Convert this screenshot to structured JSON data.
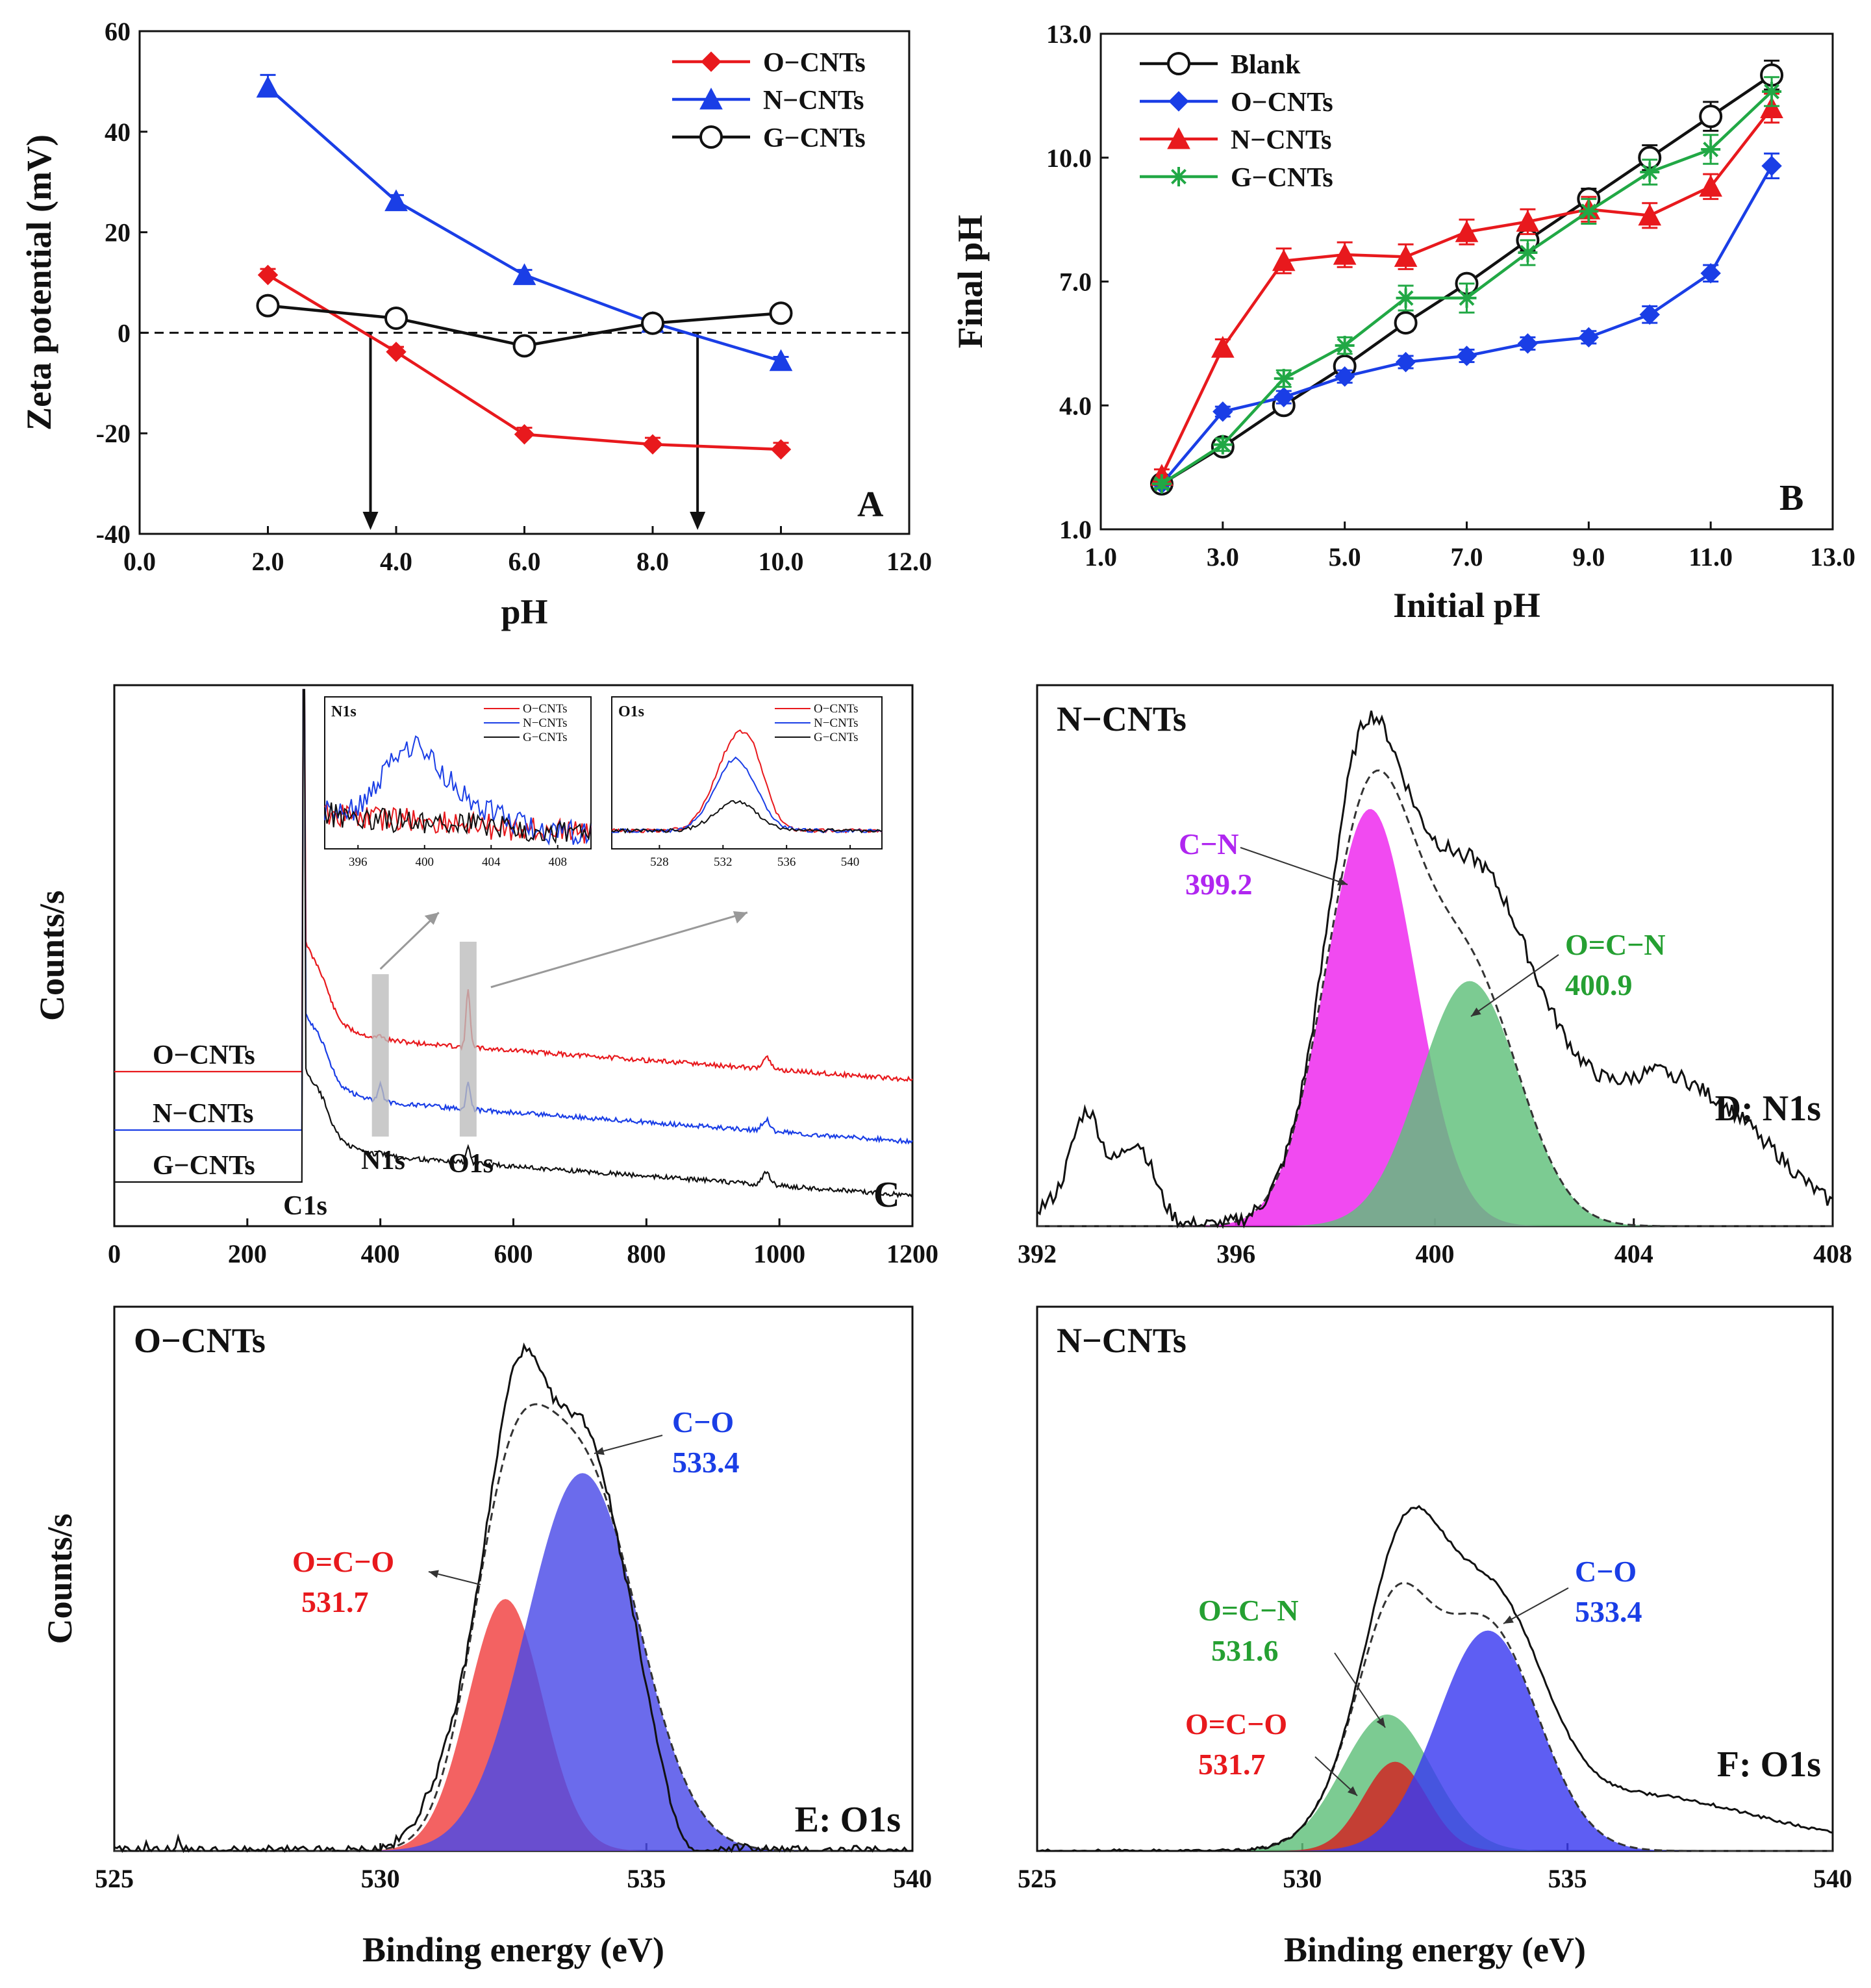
{
  "chart_data": [
    {
      "panel": "A",
      "type": "line",
      "xlabel": "pH",
      "ylabel": "Zeta potential (mV)",
      "xlim": [
        0.0,
        12.0
      ],
      "ylim": [
        -40,
        60
      ],
      "xticks": [
        "0.0",
        "2.0",
        "4.0",
        "6.0",
        "8.0",
        "10.0",
        "12.0"
      ],
      "yticks": [
        "60",
        "40",
        "20",
        "0",
        "-20",
        "-40"
      ],
      "letter": "A",
      "legend_position": "top-right",
      "reference_line_y": 0,
      "arrows_at_x": [
        3.6,
        8.7
      ],
      "series": [
        {
          "name": "O−CNTs",
          "color": "#e8191d",
          "marker": "diamond",
          "x": [
            2,
            4,
            6,
            8,
            10
          ],
          "y": [
            11.5,
            -3.8,
            -20.2,
            -22.2,
            -23.2
          ],
          "err": [
            1.2,
            1.0,
            1.3,
            1.3,
            1.3
          ]
        },
        {
          "name": "N−CNTs",
          "color": "#1a3ee6",
          "marker": "triangle",
          "x": [
            2,
            4,
            6,
            8,
            10
          ],
          "y": [
            48.8,
            26.2,
            11.5,
            2.0,
            -5.6
          ],
          "err": [
            2.5,
            1.2,
            1.0,
            0.8,
            0.8
          ]
        },
        {
          "name": "G−CNTs",
          "color": "#111111",
          "marker": "circle-open",
          "x": [
            2,
            4,
            6,
            8,
            10
          ],
          "y": [
            5.4,
            2.9,
            -2.6,
            1.9,
            3.9
          ],
          "err": [
            0.5,
            0.5,
            0.5,
            0.5,
            0.5
          ]
        }
      ]
    },
    {
      "panel": "B",
      "type": "line",
      "xlabel": "Initial pH",
      "ylabel": "Final pH",
      "xlim": [
        1.0,
        13.0
      ],
      "ylim": [
        1.0,
        13.0
      ],
      "xticks": [
        "1.0",
        "3.0",
        "5.0",
        "7.0",
        "9.0",
        "11.0",
        "13.0"
      ],
      "yticks": [
        "13.0",
        "10.0",
        "7.0",
        "4.0",
        "1.0"
      ],
      "letter": "B",
      "legend_position": "top-left",
      "series": [
        {
          "name": "Blank",
          "color": "#111111",
          "marker": "circle-open",
          "x": [
            2,
            3,
            4,
            5,
            6,
            7,
            8,
            9,
            10,
            11,
            12
          ],
          "y": [
            2.1,
            3.0,
            4.0,
            4.95,
            6.0,
            6.95,
            8.0,
            9.0,
            10.0,
            11.0,
            12.0
          ],
          "err": [
            0.15,
            0.15,
            0.2,
            0.2,
            0.2,
            0.2,
            0.25,
            0.25,
            0.3,
            0.35,
            0.35
          ]
        },
        {
          "name": "O−CNTs",
          "color": "#1a3ee6",
          "marker": "diamond",
          "x": [
            2,
            3,
            4,
            5,
            6,
            7,
            8,
            9,
            10,
            11,
            12
          ],
          "y": [
            2.1,
            3.85,
            4.2,
            4.7,
            5.05,
            5.2,
            5.5,
            5.65,
            6.2,
            7.2,
            9.8
          ],
          "err": [
            0.1,
            0.12,
            0.15,
            0.15,
            0.15,
            0.15,
            0.15,
            0.15,
            0.2,
            0.2,
            0.3
          ]
        },
        {
          "name": "N−CNTs",
          "color": "#e8191d",
          "marker": "triangle",
          "x": [
            2,
            3,
            4,
            5,
            6,
            7,
            8,
            9,
            10,
            11,
            12
          ],
          "y": [
            2.3,
            5.4,
            7.5,
            7.65,
            7.6,
            8.2,
            8.45,
            8.75,
            8.6,
            9.3,
            11.2
          ],
          "err": [
            0.15,
            0.2,
            0.3,
            0.3,
            0.3,
            0.3,
            0.3,
            0.3,
            0.3,
            0.3,
            0.35
          ]
        },
        {
          "name": "G−CNTs",
          "color": "#21a845",
          "marker": "asterisk",
          "x": [
            2,
            3,
            4,
            5,
            6,
            7,
            8,
            9,
            10,
            11,
            12
          ],
          "y": [
            2.1,
            3.05,
            4.65,
            5.45,
            6.6,
            6.6,
            7.7,
            8.7,
            9.65,
            10.2,
            11.6
          ],
          "err": [
            0.1,
            0.15,
            0.2,
            0.2,
            0.3,
            0.35,
            0.3,
            0.3,
            0.3,
            0.35,
            0.35
          ]
        }
      ]
    },
    {
      "panel": "C",
      "type": "line",
      "xlabel": "",
      "ylabel": "Counts/s",
      "xlim": [
        0,
        1200
      ],
      "xticks": [
        "0",
        "200",
        "400",
        "600",
        "800",
        "1000",
        "1200"
      ],
      "letter": "C",
      "series_labels": [
        "O−CNTs",
        "N−CNTs",
        "G−CNTs"
      ],
      "series_colors": [
        "#e8191d",
        "#1a3ee6",
        "#111111"
      ],
      "peak_labels": [
        "C1s",
        "N1s",
        "O1s"
      ],
      "peak_positions_ev": [
        284.5,
        400,
        532
      ],
      "insets": [
        {
          "title": "N1s",
          "xticks": [
            "396",
            "400",
            "404",
            "408"
          ],
          "xlim": [
            394,
            410
          ],
          "legend": [
            "O−CNTs",
            "N−CNTs",
            "G−CNTs"
          ]
        },
        {
          "title": "O1s",
          "xticks": [
            "528",
            "532",
            "536",
            "540"
          ],
          "xlim": [
            525,
            542
          ],
          "legend": [
            "O−CNTs",
            "N−CNTs",
            "G−CNTs"
          ]
        }
      ]
    },
    {
      "panel": "D",
      "type": "area",
      "title": "N−CNTs",
      "letter": "D: N1s",
      "xlim": [
        392,
        408
      ],
      "xticks": [
        "392",
        "396",
        "400",
        "404",
        "408"
      ],
      "peaks": [
        {
          "label": "C−N",
          "value": "399.2",
          "center": 398.7,
          "sigma": 0.9,
          "height": 0.8,
          "color": "#ee22ee",
          "label_color": "#b026f0"
        },
        {
          "label": "O=C−N",
          "value": "400.9",
          "center": 400.7,
          "sigma": 1.0,
          "height": 0.47,
          "color": "#5fbf7a",
          "label_color": "#25a032"
        }
      ]
    },
    {
      "panel": "E",
      "type": "area",
      "title": "O−CNTs",
      "letter": "E: O1s",
      "xlabel": "Binding energy (eV)",
      "ylabel": "Counts/s",
      "xlim": [
        525,
        540
      ],
      "xticks": [
        "525",
        "530",
        "535",
        "540"
      ],
      "peaks": [
        {
          "label": "O=C−O",
          "value": "531.7",
          "center": 532.35,
          "sigma": 0.7,
          "height": 0.48,
          "color": "#f04040",
          "label_color": "#e8191d"
        },
        {
          "label": "C−O",
          "value": "533.4",
          "center": 533.8,
          "sigma": 1.05,
          "height": 0.72,
          "color": "#4a4ae8",
          "label_color": "#1a3ee6"
        }
      ]
    },
    {
      "panel": "F",
      "type": "area",
      "title": "N−CNTs",
      "letter": "F: O1s",
      "xlabel": "Binding energy (eV)",
      "xlim": [
        525,
        540
      ],
      "xticks": [
        "525",
        "530",
        "535",
        "540"
      ],
      "peaks": [
        {
          "label": "O=C−N",
          "value": "531.6",
          "center": 531.6,
          "sigma": 0.85,
          "height": 0.26,
          "color": "#5fbf7a",
          "label_color": "#25a032"
        },
        {
          "label": "O=C−O",
          "value": "531.7",
          "center": 531.75,
          "sigma": 0.6,
          "height": 0.17,
          "color": "#d42020",
          "label_color": "#e8191d"
        },
        {
          "label": "C−O",
          "value": "533.4",
          "center": 533.5,
          "sigma": 0.95,
          "height": 0.42,
          "color": "#3b3bf0",
          "label_color": "#1a3ee6"
        }
      ]
    }
  ]
}
